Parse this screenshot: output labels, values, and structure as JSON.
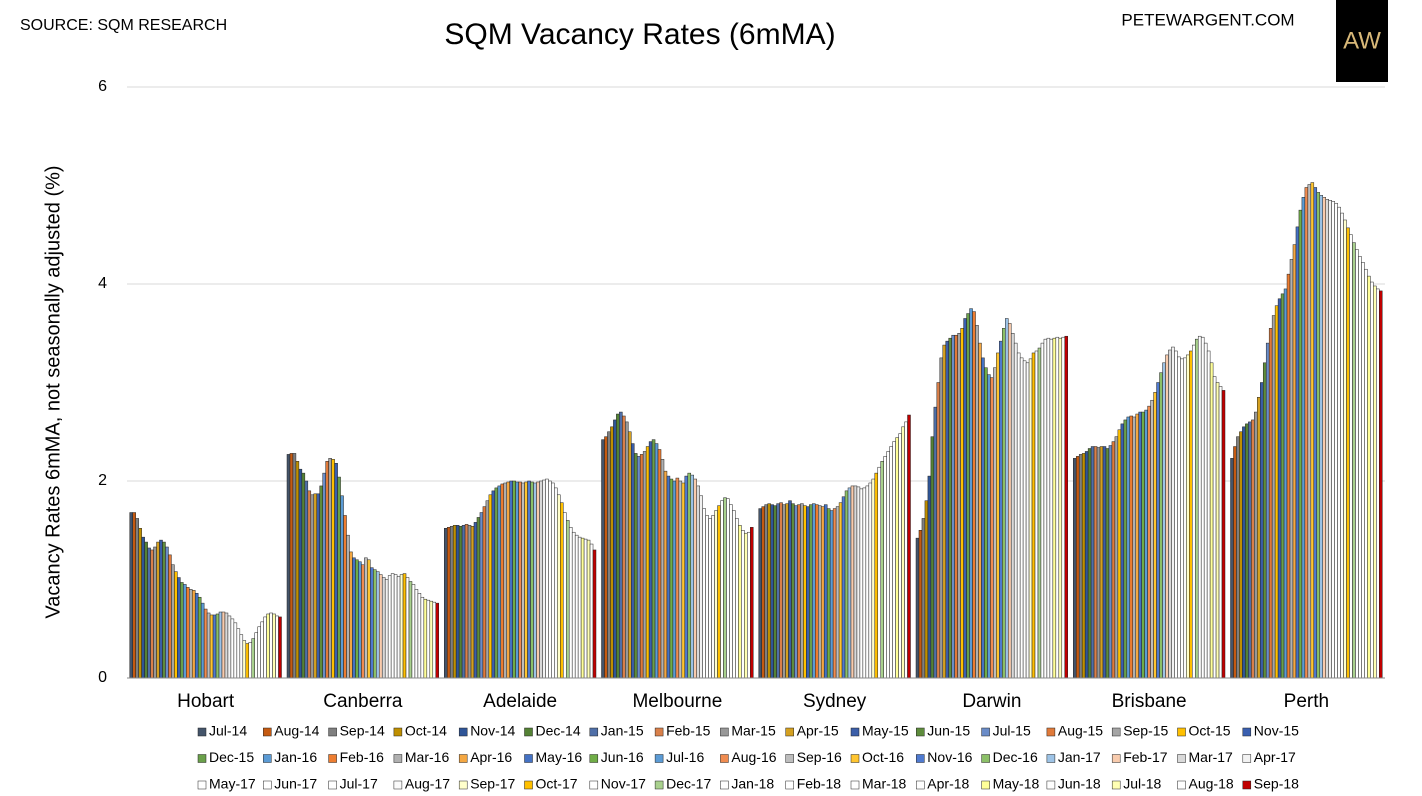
{
  "source": "SOURCE: SQM RESEARCH",
  "website": "PETEWARGENT.COM",
  "logo": "AW",
  "chart_data": {
    "type": "bar",
    "title": "SQM Vacancy Rates (6mMA)",
    "y_label": "Vacancy Rates 6mMA, not seasonally adjusted (%)",
    "categories": [
      "Hobart",
      "Canberra",
      "Adelaide",
      "Melbourne",
      "Sydney",
      "Darwin",
      "Brisbane",
      "Perth"
    ],
    "ylim": [
      0,
      6
    ],
    "yticks": [
      0,
      2,
      4,
      6
    ],
    "grid": true,
    "legend": "bottom",
    "series": [
      {
        "name": "Jul-14",
        "color": "#44546a",
        "values": [
          1.68,
          2.27,
          1.52,
          2.42,
          1.72,
          1.42,
          2.23,
          2.23
        ]
      },
      {
        "name": "Aug-14",
        "color": "#c55a11",
        "values": [
          1.68,
          2.28,
          1.53,
          2.45,
          1.74,
          1.5,
          2.25,
          2.35
        ]
      },
      {
        "name": "Sep-14",
        "color": "#7f7f7f",
        "values": [
          1.62,
          2.28,
          1.54,
          2.5,
          1.76,
          1.62,
          2.27,
          2.45
        ]
      },
      {
        "name": "Oct-14",
        "color": "#bf8f00",
        "values": [
          1.52,
          2.2,
          1.55,
          2.55,
          1.77,
          1.8,
          2.28,
          2.5
        ]
      },
      {
        "name": "Nov-14",
        "color": "#2f5597",
        "values": [
          1.43,
          2.12,
          1.55,
          2.62,
          1.76,
          2.05,
          2.3,
          2.55
        ]
      },
      {
        "name": "Dec-14",
        "color": "#548235",
        "values": [
          1.38,
          2.08,
          1.54,
          2.68,
          1.75,
          2.45,
          2.33,
          2.58
        ]
      },
      {
        "name": "Jan-15",
        "color": "#4f6fa8",
        "values": [
          1.32,
          2.0,
          1.55,
          2.7,
          1.77,
          2.75,
          2.35,
          2.6
        ]
      },
      {
        "name": "Feb-15",
        "color": "#d9804a",
        "values": [
          1.3,
          1.9,
          1.56,
          2.66,
          1.78,
          3.0,
          2.35,
          2.62
        ]
      },
      {
        "name": "Mar-15",
        "color": "#989898",
        "values": [
          1.33,
          1.86,
          1.55,
          2.6,
          1.76,
          3.25,
          2.34,
          2.7
        ]
      },
      {
        "name": "Apr-15",
        "color": "#d4a020",
        "values": [
          1.38,
          1.87,
          1.54,
          2.5,
          1.77,
          3.38,
          2.35,
          2.85
        ]
      },
      {
        "name": "May-15",
        "color": "#3b5ea8",
        "values": [
          1.4,
          1.87,
          1.58,
          2.38,
          1.8,
          3.42,
          2.35,
          3.0
        ]
      },
      {
        "name": "Jun-15",
        "color": "#5e8c3c",
        "values": [
          1.38,
          1.95,
          1.63,
          2.28,
          1.77,
          3.45,
          2.33,
          3.2
        ]
      },
      {
        "name": "Jul-15",
        "color": "#6a8cc8",
        "values": [
          1.33,
          2.08,
          1.68,
          2.25,
          1.75,
          3.48,
          2.36,
          3.4
        ]
      },
      {
        "name": "Aug-15",
        "color": "#e07a3a",
        "values": [
          1.25,
          2.2,
          1.74,
          2.27,
          1.76,
          3.48,
          2.4,
          3.55
        ]
      },
      {
        "name": "Sep-15",
        "color": "#a5a5a5",
        "values": [
          1.15,
          2.23,
          1.8,
          2.3,
          1.77,
          3.5,
          2.45,
          3.68
        ]
      },
      {
        "name": "Oct-15",
        "color": "#ffc000",
        "values": [
          1.08,
          2.22,
          1.86,
          2.35,
          1.75,
          3.55,
          2.52,
          3.78
        ]
      },
      {
        "name": "Nov-15",
        "color": "#3a5fb0",
        "values": [
          1.02,
          2.18,
          1.9,
          2.4,
          1.74,
          3.65,
          2.58,
          3.85
        ]
      },
      {
        "name": "Dec-15",
        "color": "#6aa04a",
        "values": [
          0.97,
          2.04,
          1.93,
          2.42,
          1.76,
          3.7,
          2.62,
          3.9
        ]
      },
      {
        "name": "Jan-16",
        "color": "#5b9bd5",
        "values": [
          0.95,
          1.85,
          1.95,
          2.38,
          1.77,
          3.75,
          2.65,
          3.95
        ]
      },
      {
        "name": "Feb-16",
        "color": "#ed7d31",
        "values": [
          0.92,
          1.65,
          1.97,
          2.32,
          1.76,
          3.72,
          2.66,
          4.1
        ]
      },
      {
        "name": "Mar-16",
        "color": "#b0b0b0",
        "values": [
          0.9,
          1.45,
          1.98,
          2.22,
          1.75,
          3.58,
          2.65,
          4.25
        ]
      },
      {
        "name": "Apr-16",
        "color": "#f4a742",
        "values": [
          0.89,
          1.28,
          1.99,
          2.1,
          1.74,
          3.4,
          2.68,
          4.4
        ]
      },
      {
        "name": "May-16",
        "color": "#4472c4",
        "values": [
          0.86,
          1.22,
          2.0,
          2.05,
          1.76,
          3.25,
          2.7,
          4.58
        ]
      },
      {
        "name": "Jun-16",
        "color": "#70ad47",
        "values": [
          0.82,
          1.2,
          2.0,
          2.02,
          1.72,
          3.15,
          2.7,
          4.75
        ]
      },
      {
        "name": "Jul-16",
        "color": "#5b9bd5",
        "values": [
          0.76,
          1.18,
          1.99,
          2.0,
          1.7,
          3.08,
          2.72,
          4.88
        ]
      },
      {
        "name": "Aug-16",
        "color": "#f08c50",
        "values": [
          0.7,
          1.15,
          1.99,
          2.03,
          1.72,
          3.05,
          2.76,
          4.98
        ]
      },
      {
        "name": "Sep-16",
        "color": "#bdbdbd",
        "values": [
          0.66,
          1.22,
          1.98,
          2.0,
          1.74,
          3.15,
          2.82,
          5.01
        ]
      },
      {
        "name": "Oct-16",
        "color": "#ffc530",
        "values": [
          0.64,
          1.2,
          1.99,
          1.98,
          1.78,
          3.3,
          2.9,
          5.03
        ]
      },
      {
        "name": "Nov-16",
        "color": "#4f7ad0",
        "values": [
          0.64,
          1.12,
          2.0,
          2.05,
          1.84,
          3.42,
          3.0,
          4.98
        ]
      },
      {
        "name": "Dec-16",
        "color": "#8cc068",
        "values": [
          0.65,
          1.1,
          1.99,
          2.08,
          1.9,
          3.55,
          3.1,
          4.93
        ]
      },
      {
        "name": "Jan-17",
        "color": "#9dc3e6",
        "values": [
          0.67,
          1.08,
          1.98,
          2.06,
          1.93,
          3.65,
          3.2,
          4.9
        ]
      },
      {
        "name": "Feb-17",
        "color": "#f8cbad",
        "values": [
          0.67,
          1.05,
          1.99,
          2.02,
          1.95,
          3.6,
          3.28,
          4.88
        ]
      },
      {
        "name": "Mar-17",
        "color": "#d9d9d9",
        "values": [
          0.66,
          1.02,
          2.0,
          1.95,
          1.95,
          3.5,
          3.33,
          4.86
        ]
      },
      {
        "name": "Apr-17",
        "color": "#f2f2f2",
        "values": [
          0.63,
          1.0,
          2.01,
          1.85,
          1.94,
          3.4,
          3.36,
          4.85
        ]
      },
      {
        "name": "May-17",
        "color": "#ffffff",
        "values": [
          0.6,
          1.04,
          2.02,
          1.72,
          1.92,
          3.3,
          3.32,
          4.84
        ]
      },
      {
        "name": "Jun-17",
        "color": "#ffffff",
        "values": [
          0.56,
          1.06,
          2.0,
          1.65,
          1.93,
          3.25,
          3.26,
          4.82
        ]
      },
      {
        "name": "Jul-17",
        "color": "#ffffff",
        "values": [
          0.5,
          1.05,
          1.98,
          1.62,
          1.95,
          3.22,
          3.24,
          4.78
        ]
      },
      {
        "name": "Aug-17",
        "color": "#fbfbfb",
        "values": [
          0.44,
          1.03,
          1.93,
          1.65,
          1.98,
          3.2,
          3.25,
          4.72
        ]
      },
      {
        "name": "Sep-17",
        "color": "#ffffcc",
        "values": [
          0.38,
          1.05,
          1.86,
          1.7,
          2.02,
          3.24,
          3.28,
          4.65
        ]
      },
      {
        "name": "Oct-17",
        "color": "#ffc000",
        "values": [
          0.35,
          1.06,
          1.78,
          1.75,
          2.08,
          3.3,
          3.32,
          4.57
        ]
      },
      {
        "name": "Nov-17",
        "color": "#ffffff",
        "values": [
          0.36,
          1.02,
          1.68,
          1.8,
          2.14,
          3.32,
          3.38,
          4.5
        ]
      },
      {
        "name": "Dec-17",
        "color": "#a9d18e",
        "values": [
          0.4,
          0.98,
          1.6,
          1.83,
          2.2,
          3.35,
          3.44,
          4.42
        ]
      },
      {
        "name": "Jan-18",
        "color": "#ffffff",
        "values": [
          0.46,
          0.95,
          1.53,
          1.82,
          2.25,
          3.4,
          3.47,
          4.35
        ]
      },
      {
        "name": "Feb-18",
        "color": "#ffffff",
        "values": [
          0.52,
          0.9,
          1.48,
          1.76,
          2.3,
          3.44,
          3.46,
          4.28
        ]
      },
      {
        "name": "Mar-18",
        "color": "#ffffff",
        "values": [
          0.57,
          0.86,
          1.45,
          1.7,
          2.35,
          3.45,
          3.4,
          4.22
        ]
      },
      {
        "name": "Apr-18",
        "color": "#ffffff",
        "values": [
          0.62,
          0.82,
          1.43,
          1.62,
          2.4,
          3.44,
          3.32,
          4.15
        ]
      },
      {
        "name": "May-18",
        "color": "#ffff99",
        "values": [
          0.65,
          0.8,
          1.42,
          1.55,
          2.44,
          3.45,
          3.2,
          4.08
        ]
      },
      {
        "name": "Jun-18",
        "color": "#ffffff",
        "values": [
          0.66,
          0.79,
          1.41,
          1.5,
          2.48,
          3.46,
          3.06,
          4.02
        ]
      },
      {
        "name": "Jul-18",
        "color": "#ffffb3",
        "values": [
          0.65,
          0.78,
          1.4,
          1.47,
          2.55,
          3.45,
          3.0,
          3.98
        ]
      },
      {
        "name": "Aug-18",
        "color": "#ffffff",
        "values": [
          0.63,
          0.77,
          1.36,
          1.48,
          2.6,
          3.46,
          2.96,
          3.95
        ]
      },
      {
        "name": "Sep-18",
        "color": "#c00000",
        "values": [
          0.62,
          0.76,
          1.3,
          1.53,
          2.67,
          3.47,
          2.92,
          3.93
        ]
      }
    ]
  }
}
